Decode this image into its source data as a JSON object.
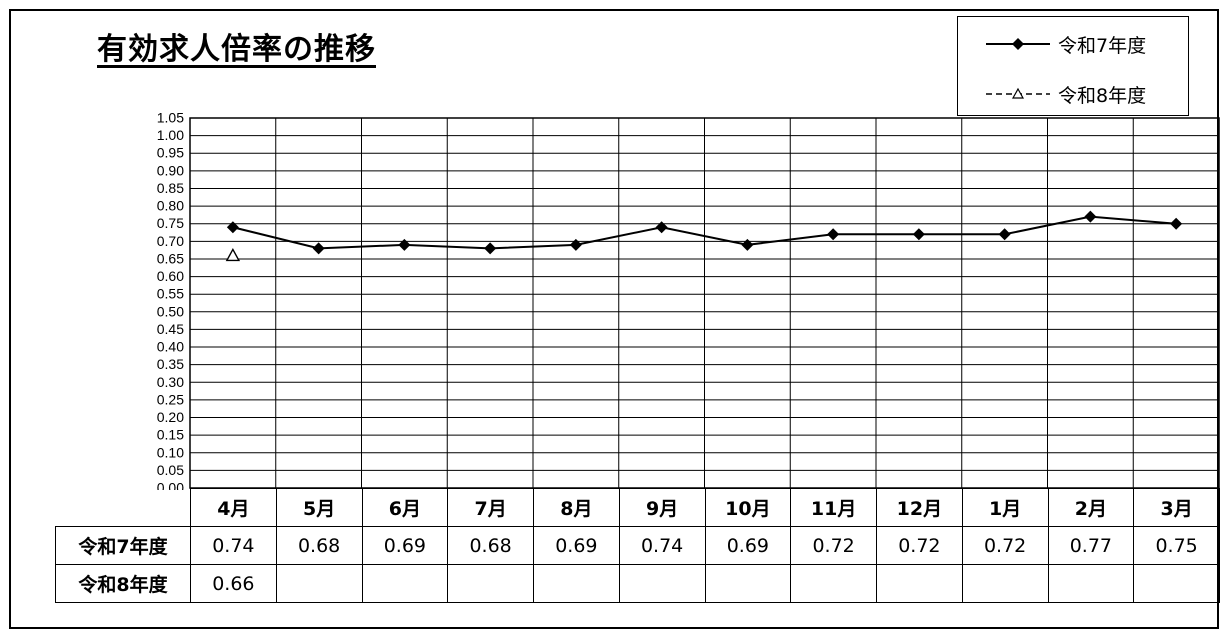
{
  "chart_data": {
    "type": "line",
    "title": "有効求人倍率の推移",
    "categories": [
      "4月",
      "5月",
      "6月",
      "7月",
      "8月",
      "9月",
      "10月",
      "11月",
      "12月",
      "1月",
      "2月",
      "3月"
    ],
    "series": [
      {
        "name": "令和7年度",
        "values": [
          0.74,
          0.68,
          0.69,
          0.68,
          0.69,
          0.74,
          0.69,
          0.72,
          0.72,
          0.72,
          0.77,
          0.75
        ],
        "labels": [
          "0.74",
          "0.68",
          "0.69",
          "0.68",
          "0.69",
          "0.74",
          "0.69",
          "0.72",
          "0.72",
          "0.72",
          "0.77",
          "0.75"
        ],
        "style": "solid",
        "marker": "diamond"
      },
      {
        "name": "令和8年度",
        "values": [
          0.66,
          null,
          null,
          null,
          null,
          null,
          null,
          null,
          null,
          null,
          null,
          null
        ],
        "labels": [
          "0.66",
          "",
          "",
          "",
          "",
          "",
          "",
          "",
          "",
          "",
          "",
          ""
        ],
        "style": "dashed",
        "marker": "triangle"
      }
    ],
    "y_ticks": [
      "0.00",
      "0.05",
      "0.10",
      "0.15",
      "0.20",
      "0.25",
      "0.30",
      "0.35",
      "0.40",
      "0.45",
      "0.50",
      "0.55",
      "0.60",
      "0.65",
      "0.70",
      "0.75",
      "0.80",
      "0.85",
      "0.90",
      "0.95",
      "1.00",
      "1.05"
    ],
    "ylim": [
      0,
      1.05
    ],
    "grid": true,
    "legend": "top-right",
    "colors": {
      "line": "#000000",
      "grid": "#000000"
    }
  }
}
